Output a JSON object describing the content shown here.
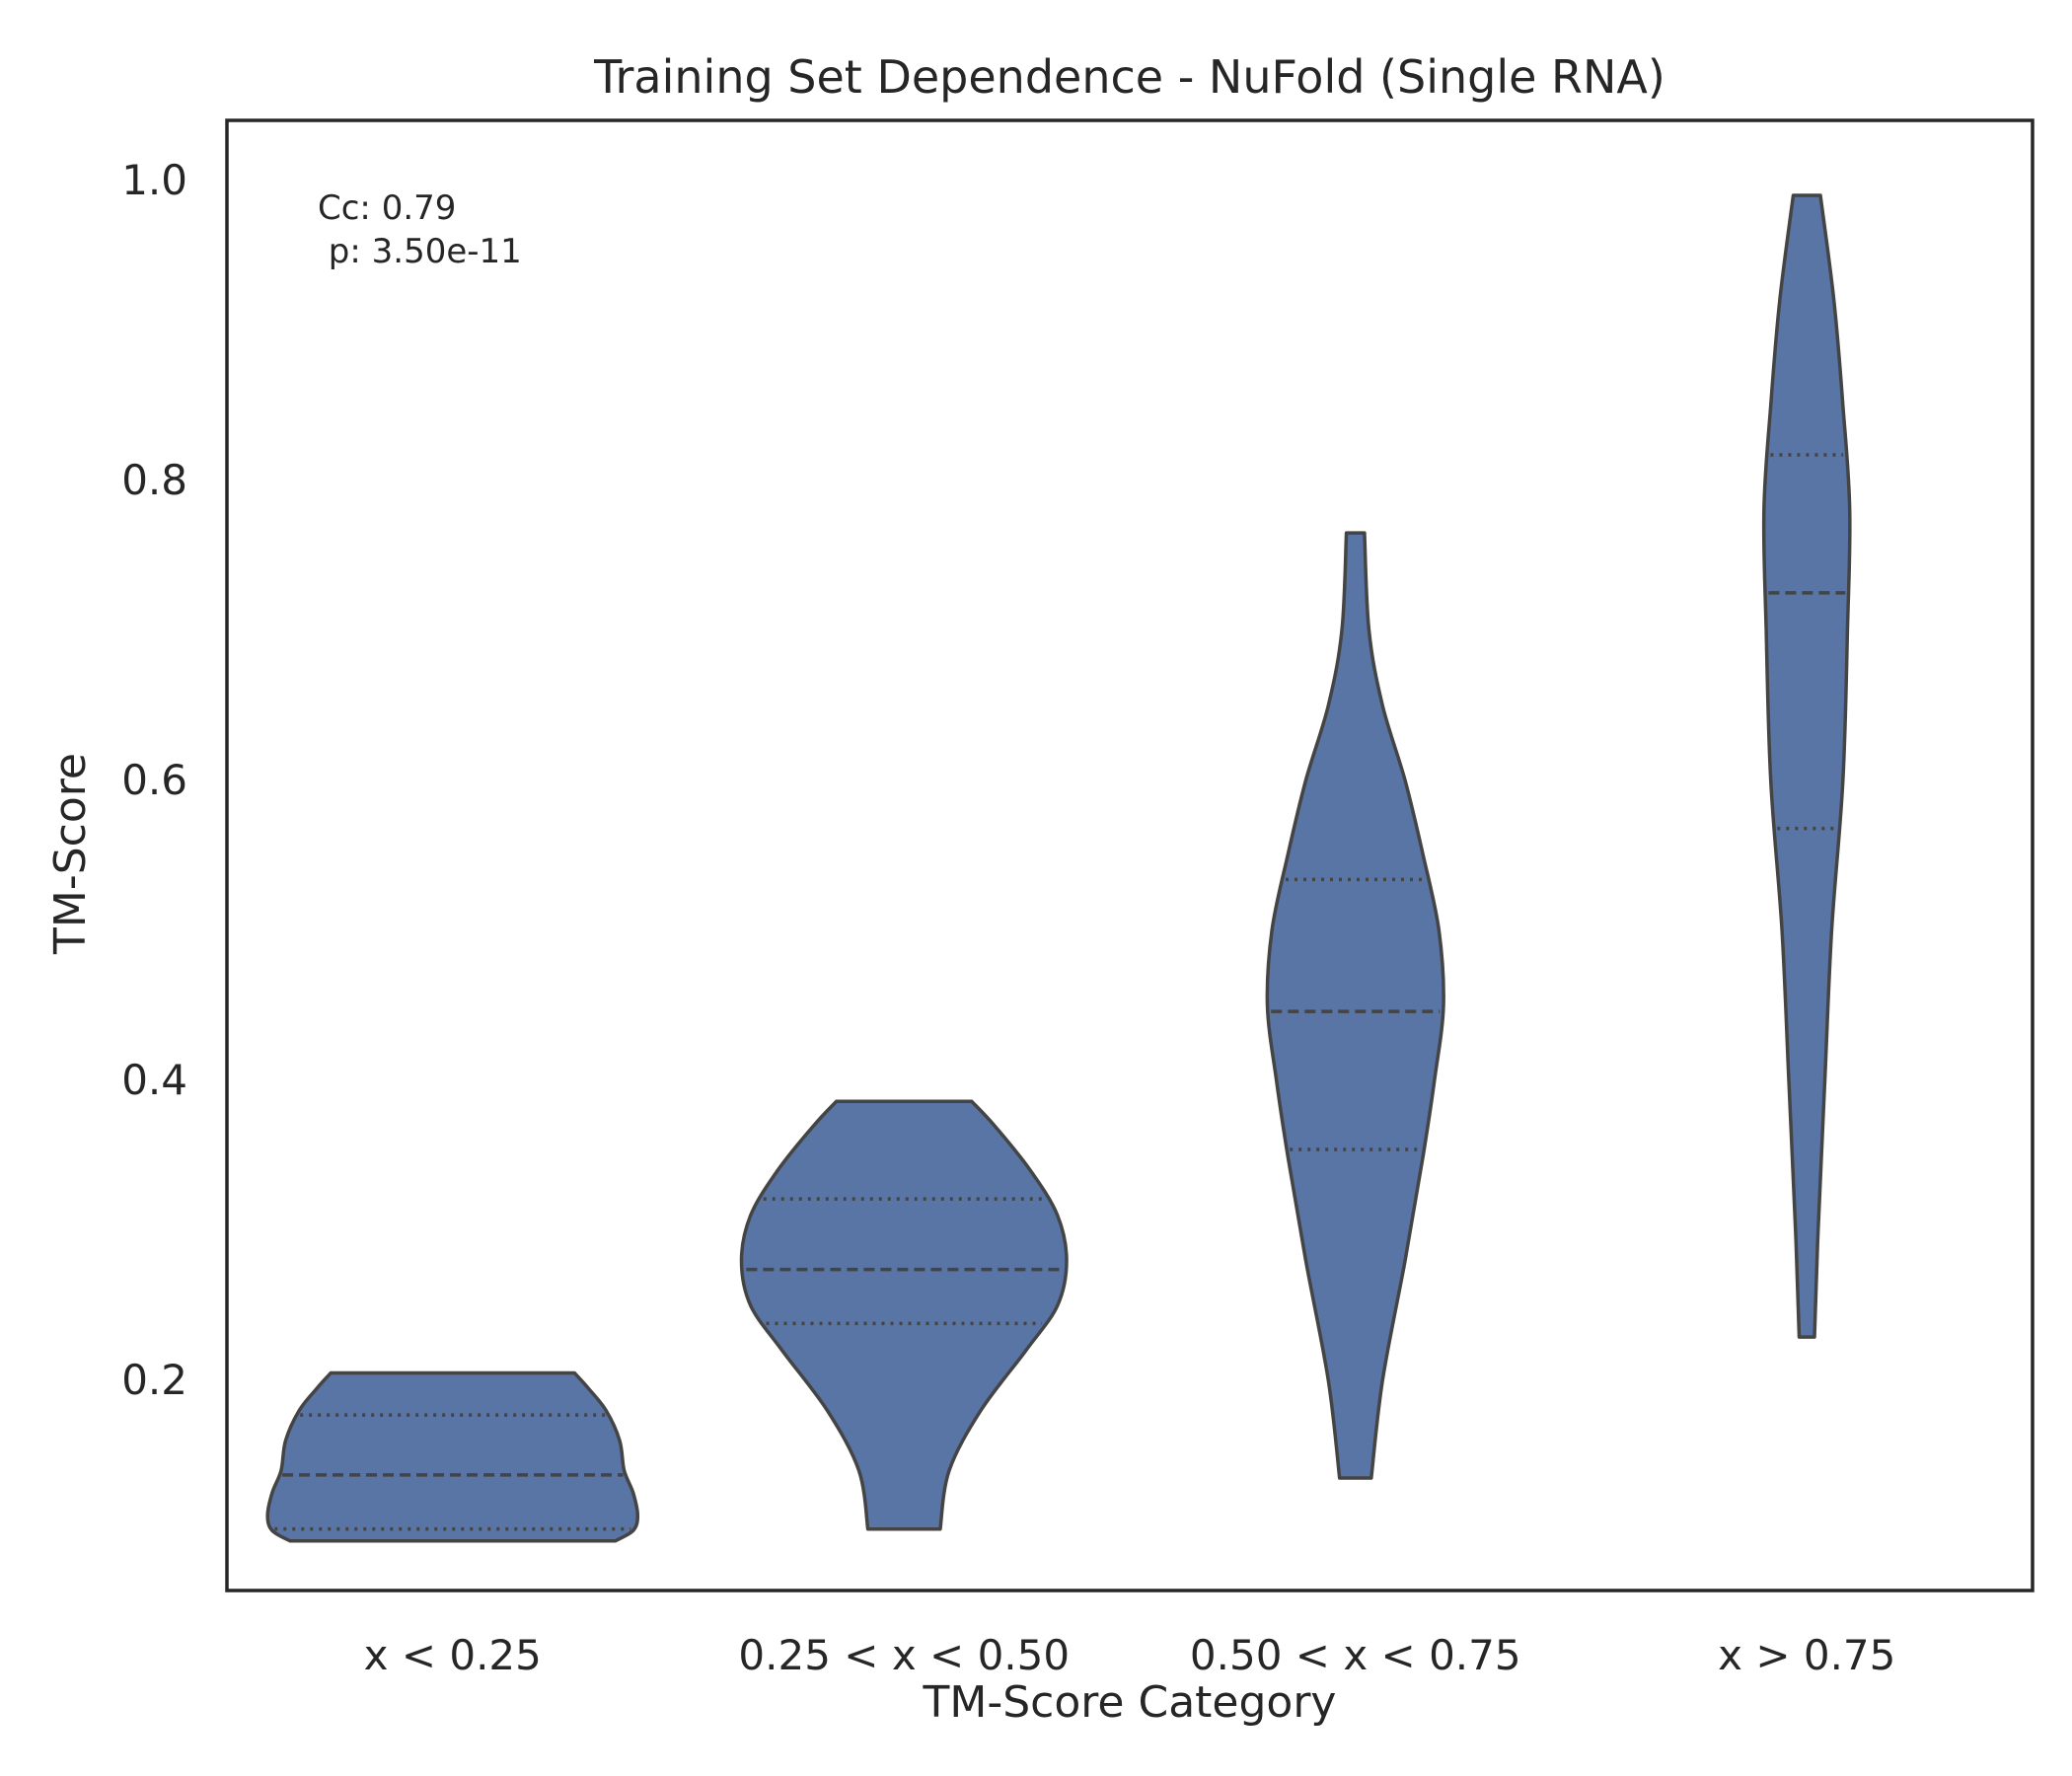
{
  "chart_data": {
    "type": "violin",
    "title": "Training Set Dependence - NuFold (Single RNA)",
    "xlabel": "TM-Score Category",
    "ylabel": "TM-Score",
    "ylim": [
      0.06,
      1.04
    ],
    "yticks": [
      "0.2",
      "0.4",
      "0.6",
      "0.8",
      "1.0"
    ],
    "grid": false,
    "inner": "quartile",
    "fill_color": "#5875a5",
    "edge_color": "#444444",
    "annotation": {
      "lines": [
        "Cc: 0.79",
        " p: 3.50e-11"
      ],
      "placement": "top-left"
    },
    "categories": [
      {
        "label": "x < 0.25",
        "min": 0.093,
        "max": 0.205,
        "q1": 0.101,
        "median": 0.137,
        "q3": 0.177,
        "profile": [
          [
            0.093,
            0.36
          ],
          [
            0.1,
            0.4
          ],
          [
            0.11,
            0.41
          ],
          [
            0.125,
            0.4
          ],
          [
            0.14,
            0.38
          ],
          [
            0.16,
            0.37
          ],
          [
            0.18,
            0.34
          ],
          [
            0.195,
            0.3
          ],
          [
            0.205,
            0.27
          ]
        ]
      },
      {
        "label": "0.25 < x < 0.50",
        "min": 0.101,
        "max": 0.386,
        "q1": 0.238,
        "median": 0.274,
        "q3": 0.321,
        "profile": [
          [
            0.101,
            0.08
          ],
          [
            0.14,
            0.1
          ],
          [
            0.18,
            0.17
          ],
          [
            0.22,
            0.27
          ],
          [
            0.25,
            0.34
          ],
          [
            0.28,
            0.36
          ],
          [
            0.31,
            0.34
          ],
          [
            0.34,
            0.28
          ],
          [
            0.37,
            0.2
          ],
          [
            0.386,
            0.15
          ]
        ]
      },
      {
        "label": "0.50 < x < 0.75",
        "min": 0.135,
        "max": 0.765,
        "q1": 0.354,
        "median": 0.446,
        "q3": 0.534,
        "profile": [
          [
            0.135,
            0.035
          ],
          [
            0.2,
            0.06
          ],
          [
            0.28,
            0.11
          ],
          [
            0.35,
            0.15
          ],
          [
            0.4,
            0.175
          ],
          [
            0.45,
            0.195
          ],
          [
            0.5,
            0.185
          ],
          [
            0.55,
            0.15
          ],
          [
            0.6,
            0.11
          ],
          [
            0.65,
            0.06
          ],
          [
            0.7,
            0.03
          ],
          [
            0.765,
            0.02
          ]
        ]
      },
      {
        "label": "x > 0.75",
        "min": 0.229,
        "max": 0.99,
        "q1": 0.568,
        "median": 0.725,
        "q3": 0.817,
        "profile": [
          [
            0.229,
            0.017
          ],
          [
            0.3,
            0.025
          ],
          [
            0.4,
            0.04
          ],
          [
            0.5,
            0.055
          ],
          [
            0.6,
            0.08
          ],
          [
            0.7,
            0.09
          ],
          [
            0.78,
            0.095
          ],
          [
            0.85,
            0.08
          ],
          [
            0.92,
            0.06
          ],
          [
            0.99,
            0.03
          ]
        ]
      }
    ]
  }
}
